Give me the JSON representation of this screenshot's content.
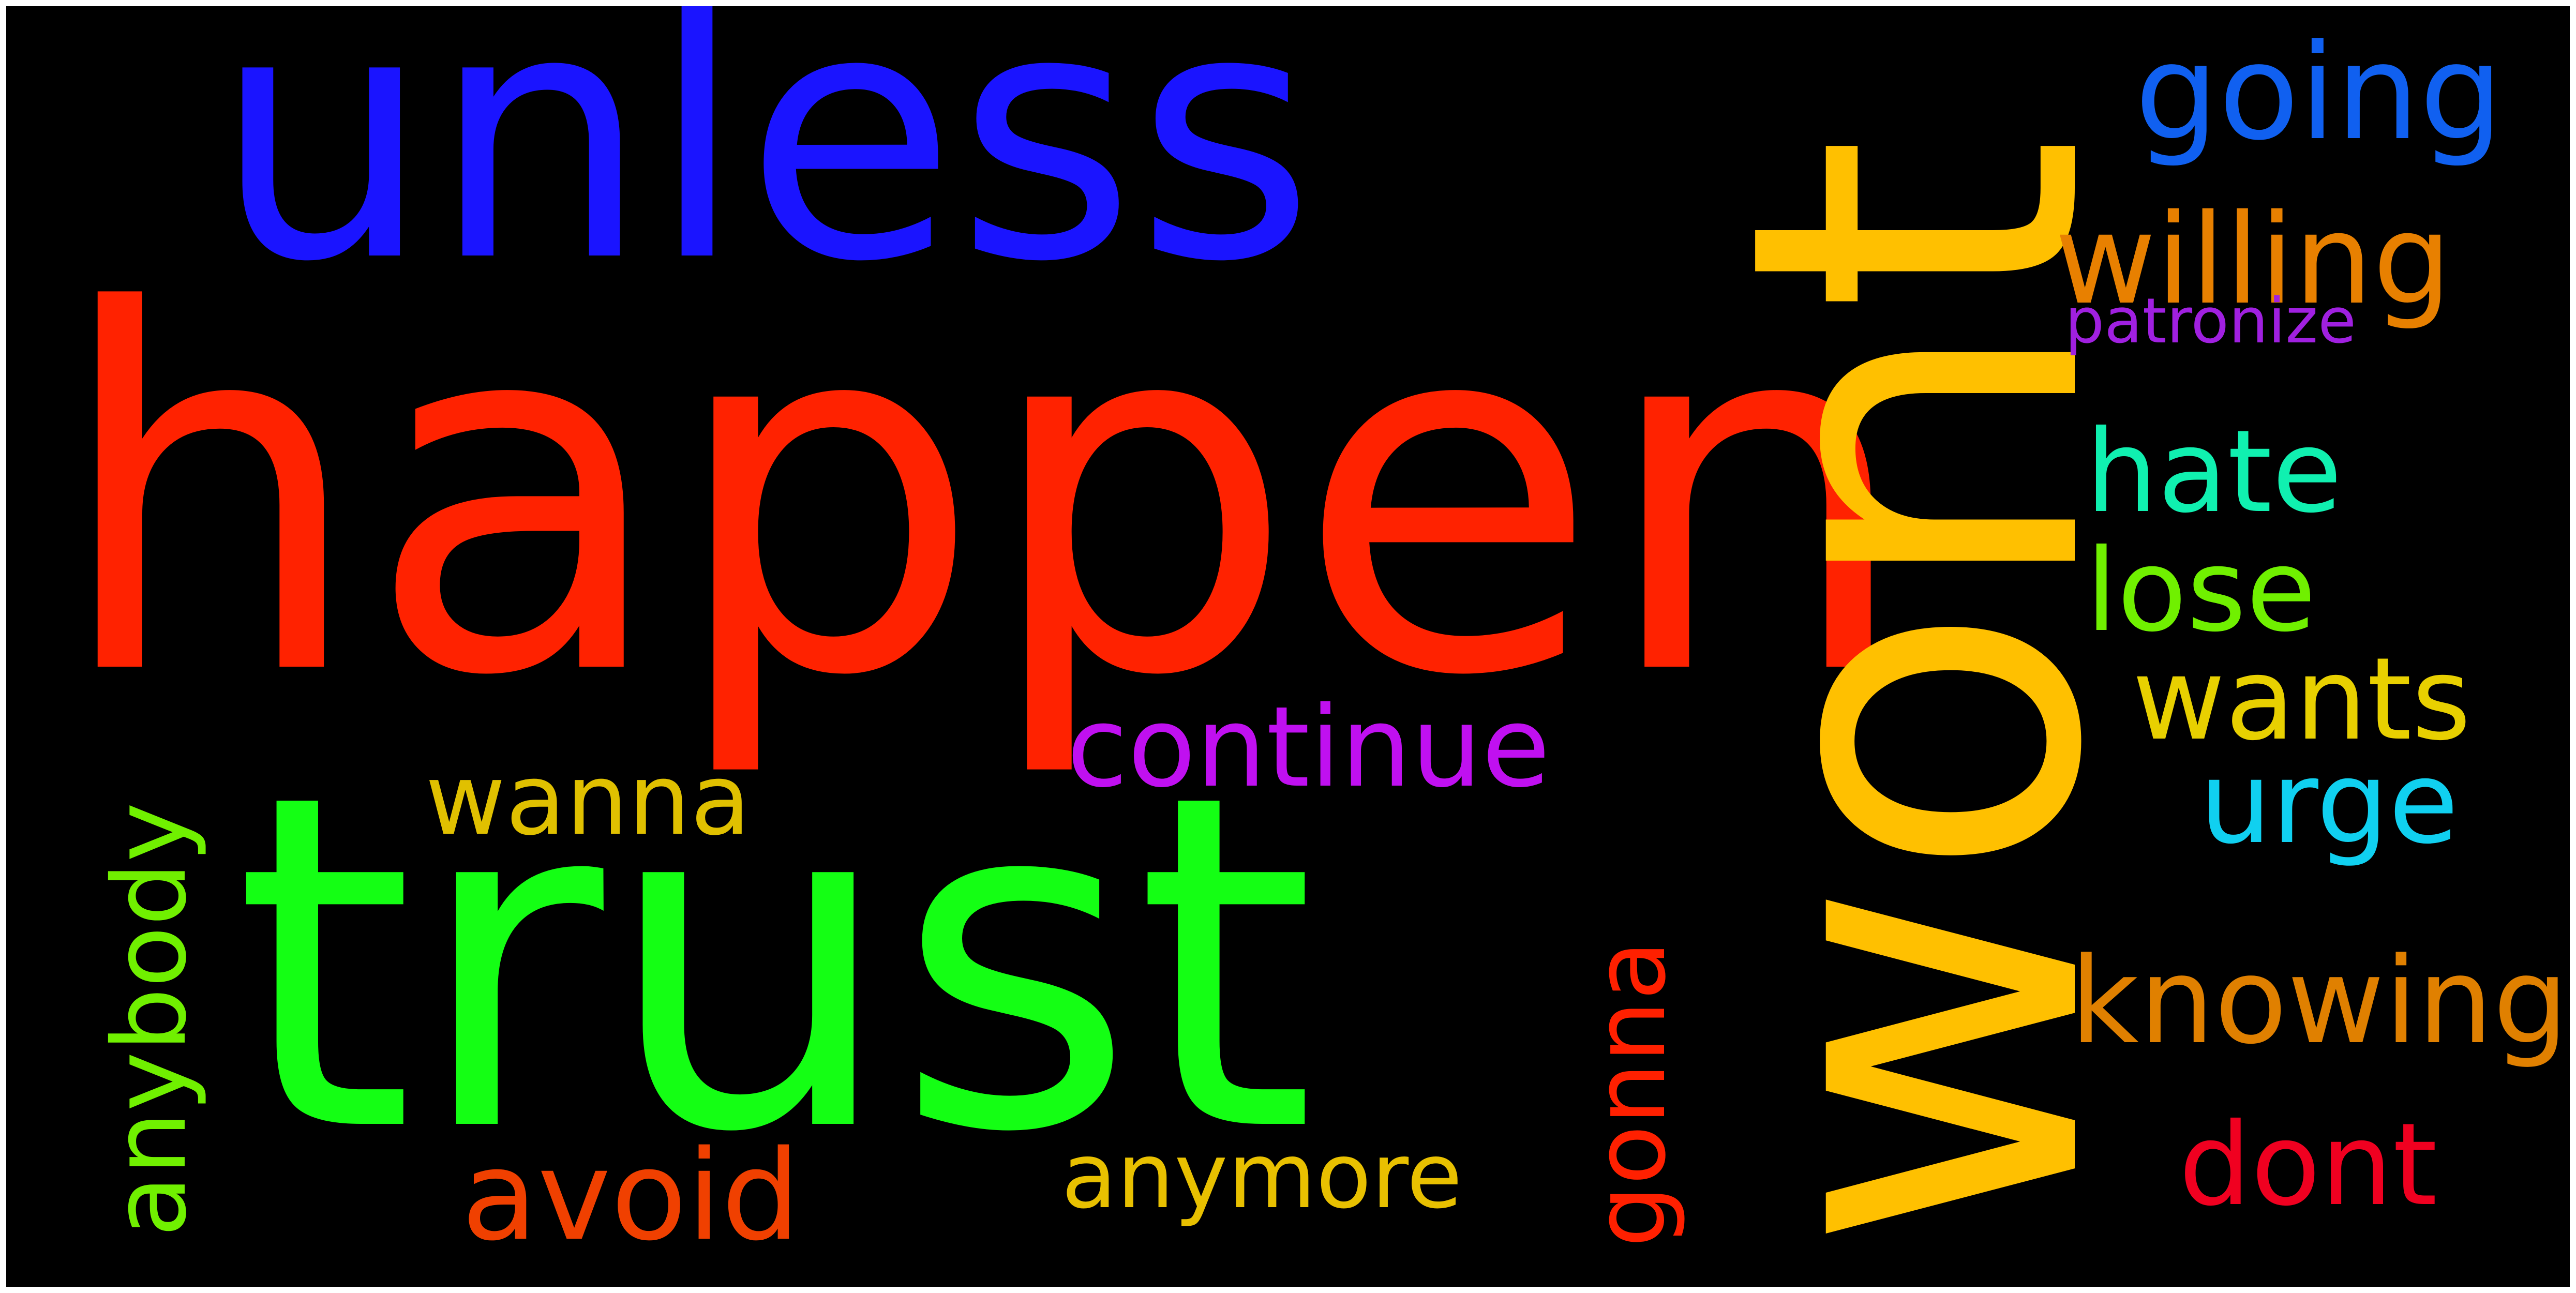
{
  "words": {
    "unless": {
      "text": "unless",
      "color": "#1a14ff"
    },
    "happen": {
      "text": "happen",
      "color": "#ff2200"
    },
    "trust": {
      "text": "trust",
      "color": "#14ff14"
    },
    "wont": {
      "text": "wont",
      "color": "#ffc000"
    },
    "going": {
      "text": "going",
      "color": "#1060f0"
    },
    "willing": {
      "text": "willing",
      "color": "#e88000"
    },
    "patronize": {
      "text": "patronize",
      "color": "#a020e0"
    },
    "hate": {
      "text": "hate",
      "color": "#10f0b0"
    },
    "lose": {
      "text": "lose",
      "color": "#70f000"
    },
    "wants": {
      "text": "wants",
      "color": "#e8d000"
    },
    "urge": {
      "text": "urge",
      "color": "#10d0f0"
    },
    "knowing": {
      "text": "knowing",
      "color": "#e08000"
    },
    "dont": {
      "text": "dont",
      "color": "#f00020"
    },
    "continue": {
      "text": "continue",
      "color": "#c010f0"
    },
    "wanna": {
      "text": "wanna",
      "color": "#e0c000"
    },
    "anybody": {
      "text": "anybody",
      "color": "#70f000"
    },
    "gonna": {
      "text": "gonna",
      "color": "#ff2000"
    },
    "avoid": {
      "text": "avoid",
      "color": "#f04000"
    },
    "anymore": {
      "text": "anymore",
      "color": "#e8c000"
    }
  },
  "background_color": "#000000"
}
